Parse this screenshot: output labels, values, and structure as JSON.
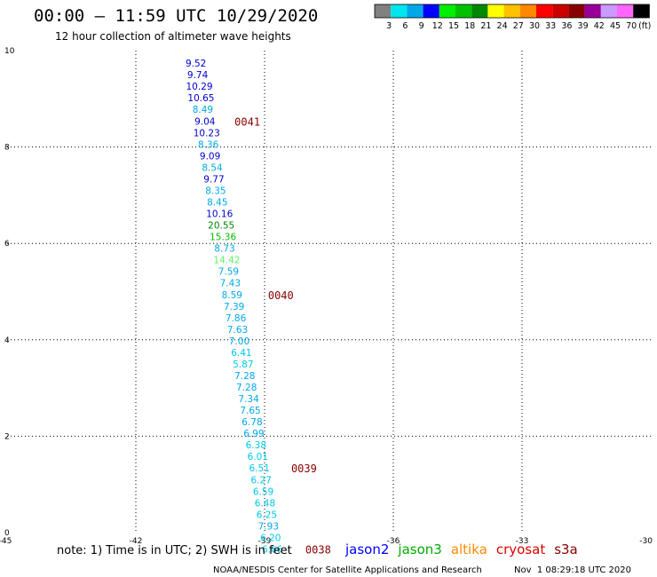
{
  "chart_data": {
    "type": "scatter",
    "title": "00:00 – 11:59 UTC 10/29/2020",
    "subtitle": "12 hour collection of altimeter wave heights",
    "xlim": [
      -45,
      -30
    ],
    "ylim": [
      0,
      10
    ],
    "x_ticks": [
      "-45",
      "-42",
      "-39",
      "-36",
      "-33",
      "-30"
    ],
    "y_ticks": [
      "0",
      "2",
      "4",
      "6",
      "8",
      "10"
    ],
    "grid": true,
    "color_scale": {
      "units": "(ft)",
      "bins": [
        {
          "label": "3",
          "color": "#808080"
        },
        {
          "label": "6",
          "color": "#00e5ee"
        },
        {
          "label": "9",
          "color": "#00a8e8"
        },
        {
          "label": "12",
          "color": "#0000ff"
        },
        {
          "label": "15",
          "color": "#00ee00"
        },
        {
          "label": "18",
          "color": "#00c000"
        },
        {
          "label": "21",
          "color": "#008800"
        },
        {
          "label": "24",
          "color": "#ffff00"
        },
        {
          "label": "27",
          "color": "#ffc000"
        },
        {
          "label": "30",
          "color": "#ff8800"
        },
        {
          "label": "33",
          "color": "#ff0000"
        },
        {
          "label": "36",
          "color": "#cc0000"
        },
        {
          "label": "39",
          "color": "#880000"
        },
        {
          "label": "42",
          "color": "#990099"
        },
        {
          "label": "45",
          "color": "#cc99ff"
        },
        {
          "label": "70",
          "color": "#ff66ff"
        },
        {
          "label": "",
          "color": "#000000"
        }
      ]
    },
    "points": [
      {
        "x": -40.6,
        "y": 9.74,
        "label": "9.52",
        "color": "#0000cc"
      },
      {
        "x": -40.56,
        "y": 9.5,
        "label": "9.74",
        "color": "#0000cc"
      },
      {
        "x": -40.52,
        "y": 9.26,
        "label": "10.29",
        "color": "#0000cc"
      },
      {
        "x": -40.48,
        "y": 9.02,
        "label": "10.65",
        "color": "#0000cc"
      },
      {
        "x": -40.44,
        "y": 8.78,
        "label": "8.49",
        "color": "#00a8e8"
      },
      {
        "x": -40.39,
        "y": 8.54,
        "label": "9.04",
        "color": "#0000cc"
      },
      {
        "x": -40.35,
        "y": 8.3,
        "label": "10.23",
        "color": "#0000cc"
      },
      {
        "x": -40.31,
        "y": 8.06,
        "label": "8.36",
        "color": "#00a8e8"
      },
      {
        "x": -40.27,
        "y": 7.82,
        "label": "9.09",
        "color": "#0000cc"
      },
      {
        "x": -40.22,
        "y": 7.58,
        "label": "8.54",
        "color": "#00a8e8"
      },
      {
        "x": -40.18,
        "y": 7.34,
        "label": "9.77",
        "color": "#0000cc"
      },
      {
        "x": -40.14,
        "y": 7.1,
        "label": "8.35",
        "color": "#00a8e8"
      },
      {
        "x": -40.1,
        "y": 6.86,
        "label": "8.45",
        "color": "#00a8e8"
      },
      {
        "x": -40.05,
        "y": 6.62,
        "label": "10.16",
        "color": "#0000cc"
      },
      {
        "x": -40.01,
        "y": 6.38,
        "label": "20.55",
        "color": "#008800"
      },
      {
        "x": -39.97,
        "y": 6.14,
        "label": "15.36",
        "color": "#00c000"
      },
      {
        "x": -39.93,
        "y": 5.9,
        "label": "8.73",
        "color": "#00a8e8"
      },
      {
        "x": -39.88,
        "y": 5.66,
        "label": "14.42",
        "color": "#66ee66"
      },
      {
        "x": -39.84,
        "y": 5.42,
        "label": "7.59",
        "color": "#00a8e8"
      },
      {
        "x": -39.8,
        "y": 5.18,
        "label": "7.43",
        "color": "#00a8e8"
      },
      {
        "x": -39.76,
        "y": 4.94,
        "label": "8.59",
        "color": "#00a8e8"
      },
      {
        "x": -39.71,
        "y": 4.7,
        "label": "7.39",
        "color": "#00a8e8"
      },
      {
        "x": -39.67,
        "y": 4.46,
        "label": "7.86",
        "color": "#00a8e8"
      },
      {
        "x": -39.63,
        "y": 4.22,
        "label": "7.63",
        "color": "#00a8e8"
      },
      {
        "x": -39.59,
        "y": 3.98,
        "label": "7.00",
        "color": "#00a8e8"
      },
      {
        "x": -39.54,
        "y": 3.74,
        "label": "6.41",
        "color": "#00c8e8"
      },
      {
        "x": -39.5,
        "y": 3.5,
        "label": "5.87",
        "color": "#00c8e8"
      },
      {
        "x": -39.46,
        "y": 3.26,
        "label": "7.28",
        "color": "#00a8e8"
      },
      {
        "x": -39.42,
        "y": 3.02,
        "label": "7.28",
        "color": "#00a8e8"
      },
      {
        "x": -39.37,
        "y": 2.78,
        "label": "7.34",
        "color": "#00a8e8"
      },
      {
        "x": -39.33,
        "y": 2.54,
        "label": "7.65",
        "color": "#00a8e8"
      },
      {
        "x": -39.29,
        "y": 2.3,
        "label": "6.78",
        "color": "#00a8e8"
      },
      {
        "x": -39.25,
        "y": 2.06,
        "label": "6.99",
        "color": "#00a8e8"
      },
      {
        "x": -39.2,
        "y": 1.82,
        "label": "6.38",
        "color": "#00c8e8"
      },
      {
        "x": -39.16,
        "y": 1.58,
        "label": "6.01",
        "color": "#00c8e8"
      },
      {
        "x": -39.12,
        "y": 1.34,
        "label": "6.51",
        "color": "#00c8e8"
      },
      {
        "x": -39.08,
        "y": 1.1,
        "label": "6.27",
        "color": "#00c8e8"
      },
      {
        "x": -39.03,
        "y": 0.86,
        "label": "6.59",
        "color": "#00c8e8"
      },
      {
        "x": -38.99,
        "y": 0.62,
        "label": "6.48",
        "color": "#00c8e8"
      },
      {
        "x": -38.95,
        "y": 0.38,
        "label": "6.25",
        "color": "#00c8e8"
      },
      {
        "x": -38.91,
        "y": 0.14,
        "label": "7.93",
        "color": "#00a8e8"
      },
      {
        "x": -38.86,
        "y": -0.1,
        "label": "6.20",
        "color": "#00c8e8"
      },
      {
        "x": -38.82,
        "y": -0.34,
        "label": "6.66",
        "color": "#00c8e8"
      }
    ],
    "time_marks": [
      {
        "x": -39.7,
        "y": 8.54,
        "label": "0041"
      },
      {
        "x": -38.92,
        "y": 4.94,
        "label": "0040"
      },
      {
        "x": -38.38,
        "y": 1.34,
        "label": "0039"
      },
      {
        "x": -38.05,
        "y": -0.34,
        "label": "0038"
      }
    ]
  },
  "footer": {
    "note": "note: 1) Time is in UTC; 2) SWH is in feet",
    "satellites": [
      {
        "name": "jason2",
        "color": "#0000ff"
      },
      {
        "name": "jason3",
        "color": "#00aa00"
      },
      {
        "name": "altika",
        "color": "#ff8800"
      },
      {
        "name": "cryosat",
        "color": "#dd0000"
      },
      {
        "name": "s3a",
        "color": "#880000"
      }
    ],
    "credit": "NOAA/NESDIS Center for Satellite Applications and Research",
    "timestamp": "Nov  1 08:29:18 UTC 2020"
  }
}
